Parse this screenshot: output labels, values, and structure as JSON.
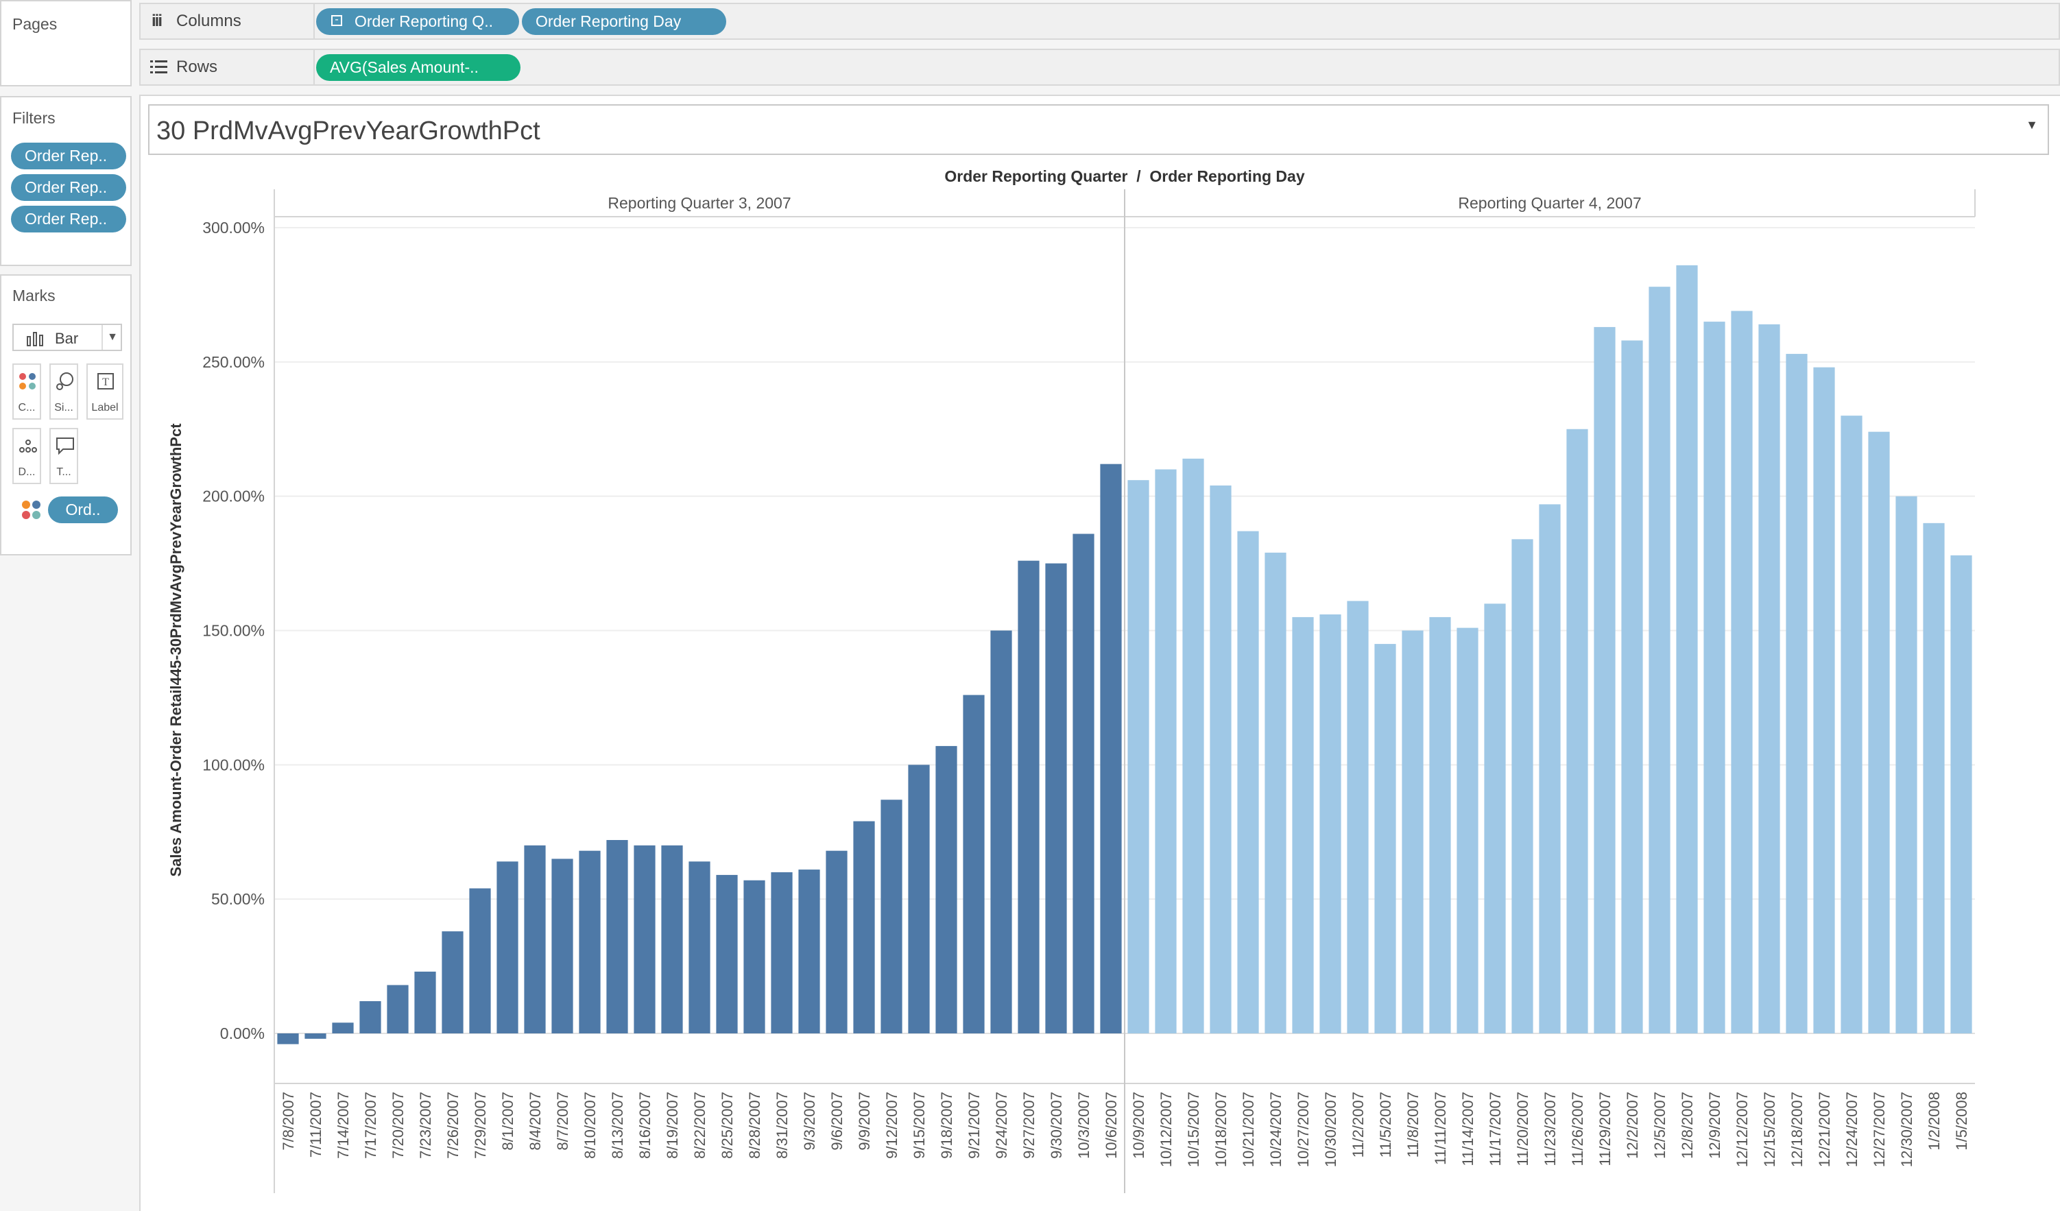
{
  "pages": {
    "title": "Pages"
  },
  "filters": {
    "title": "Filters",
    "pills": [
      "Order Rep..",
      "Order Rep..",
      "Order Rep.."
    ]
  },
  "marks": {
    "title": "Marks",
    "type": "Bar",
    "buttons": {
      "color": "C...",
      "size": "Si...",
      "label": "Label",
      "detail": "D...",
      "tooltip": "T..."
    },
    "color_pill": "Ord.."
  },
  "columns": {
    "label": "Columns",
    "pills": [
      "Order Reporting Q..",
      "Order Reporting Day"
    ]
  },
  "rows": {
    "label": "Rows",
    "pills": [
      "AVG(Sales Amount-.."
    ]
  },
  "sheet_selector": {
    "value": "30 PrdMvAvgPrevYearGrowthPct"
  },
  "chart_data": {
    "type": "bar",
    "title": "Order Reporting Quarter  /  Order Reporting Day",
    "ylabel": "Sales Amount-Order Retail445-30PrdMvAvgPrevYearGrowthPct",
    "ylim": [
      -18,
      300
    ],
    "yticks": [
      "300.00%",
      "250.00%",
      "200.00%",
      "150.00%",
      "100.00%",
      "50.00%",
      "0.00%"
    ],
    "ytick_values": [
      300,
      250,
      200,
      150,
      100,
      50,
      0
    ],
    "panes": [
      {
        "name": "Reporting Quarter 3, 2007",
        "color": "#4e79a7",
        "categories": [
          "7/8/2007",
          "7/11/2007",
          "7/14/2007",
          "7/17/2007",
          "7/20/2007",
          "7/23/2007",
          "7/26/2007",
          "7/29/2007",
          "8/1/2007",
          "8/4/2007",
          "8/7/2007",
          "8/10/2007",
          "8/13/2007",
          "8/16/2007",
          "8/19/2007",
          "8/22/2007",
          "8/25/2007",
          "8/28/2007",
          "8/31/2007",
          "9/3/2007",
          "9/6/2007",
          "9/9/2007",
          "9/12/2007",
          "9/15/2007",
          "9/18/2007",
          "9/21/2007",
          "9/24/2007",
          "9/27/2007",
          "9/30/2007",
          "10/3/2007",
          "10/6/2007"
        ],
        "values": [
          -4,
          -2,
          4,
          12,
          18,
          23,
          38,
          54,
          64,
          70,
          65,
          68,
          72,
          70,
          70,
          64,
          59,
          57,
          60,
          61,
          68,
          79,
          87,
          100,
          107,
          126,
          150,
          176,
          175,
          186,
          212
        ]
      },
      {
        "name": "Reporting Quarter 4, 2007",
        "color": "#9fc8e6",
        "categories": [
          "10/9/2007",
          "10/12/2007",
          "10/15/2007",
          "10/18/2007",
          "10/21/2007",
          "10/24/2007",
          "10/27/2007",
          "10/30/2007",
          "11/2/2007",
          "11/5/2007",
          "11/8/2007",
          "11/11/2007",
          "11/14/2007",
          "11/17/2007",
          "11/20/2007",
          "11/23/2007",
          "11/26/2007",
          "11/29/2007",
          "12/2/2007",
          "12/5/2007",
          "12/8/2007",
          "12/9/2007",
          "12/12/2007",
          "12/15/2007",
          "12/18/2007",
          "12/21/2007",
          "12/24/2007",
          "12/27/2007",
          "12/30/2007",
          "1/2/2008",
          "1/5/2008"
        ],
        "values": [
          206,
          210,
          214,
          204,
          187,
          179,
          155,
          156,
          161,
          145,
          150,
          155,
          151,
          160,
          184,
          197,
          225,
          263,
          258,
          278,
          286,
          265,
          269,
          264,
          253,
          248,
          230,
          224,
          200,
          190,
          178
        ]
      }
    ]
  }
}
